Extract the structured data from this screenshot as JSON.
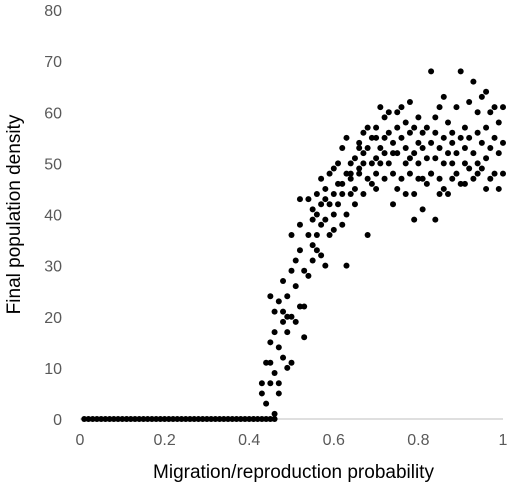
{
  "chart_data": {
    "type": "scatter",
    "title": "",
    "xlabel": "Migration/reproduction probability",
    "ylabel": "Final population density",
    "xlim": [
      0,
      1
    ],
    "ylim": [
      0,
      80
    ],
    "x_ticks": [
      "0",
      "0.2",
      "0.4",
      "0.6",
      "0.8",
      "1"
    ],
    "y_ticks": [
      "0",
      "10",
      "20",
      "30",
      "40",
      "50",
      "60",
      "70",
      "80"
    ],
    "grid": false,
    "legend": "none",
    "marker_color": "#000000",
    "axis_color": "#bfbfbf",
    "series": [
      {
        "points": [
          [
            0.01,
            0
          ],
          [
            0.02,
            0
          ],
          [
            0.03,
            0
          ],
          [
            0.04,
            0
          ],
          [
            0.05,
            0
          ],
          [
            0.06,
            0
          ],
          [
            0.07,
            0
          ],
          [
            0.08,
            0
          ],
          [
            0.09,
            0
          ],
          [
            0.1,
            0
          ],
          [
            0.11,
            0
          ],
          [
            0.12,
            0
          ],
          [
            0.13,
            0
          ],
          [
            0.14,
            0
          ],
          [
            0.15,
            0
          ],
          [
            0.16,
            0
          ],
          [
            0.17,
            0
          ],
          [
            0.18,
            0
          ],
          [
            0.19,
            0
          ],
          [
            0.2,
            0
          ],
          [
            0.21,
            0
          ],
          [
            0.22,
            0
          ],
          [
            0.23,
            0
          ],
          [
            0.24,
            0
          ],
          [
            0.25,
            0
          ],
          [
            0.26,
            0
          ],
          [
            0.27,
            0
          ],
          [
            0.28,
            0
          ],
          [
            0.29,
            0
          ],
          [
            0.3,
            0
          ],
          [
            0.31,
            0
          ],
          [
            0.32,
            0
          ],
          [
            0.33,
            0
          ],
          [
            0.34,
            0
          ],
          [
            0.35,
            0
          ],
          [
            0.36,
            0
          ],
          [
            0.37,
            0
          ],
          [
            0.38,
            0
          ],
          [
            0.39,
            0
          ],
          [
            0.4,
            0
          ],
          [
            0.41,
            0
          ],
          [
            0.42,
            0
          ],
          [
            0.43,
            0
          ],
          [
            0.44,
            0
          ],
          [
            0.45,
            0
          ],
          [
            0.46,
            0
          ],
          [
            0.43,
            7
          ],
          [
            0.43,
            5
          ],
          [
            0.44,
            11
          ],
          [
            0.44,
            3
          ],
          [
            0.45,
            7
          ],
          [
            0.45,
            11
          ],
          [
            0.45,
            15
          ],
          [
            0.45,
            24
          ],
          [
            0.46,
            1
          ],
          [
            0.46,
            17
          ],
          [
            0.46,
            21
          ],
          [
            0.46,
            9
          ],
          [
            0.47,
            14
          ],
          [
            0.47,
            23
          ],
          [
            0.47,
            5
          ],
          [
            0.47,
            7
          ],
          [
            0.48,
            19
          ],
          [
            0.48,
            12
          ],
          [
            0.48,
            27
          ],
          [
            0.48,
            21
          ],
          [
            0.49,
            17
          ],
          [
            0.49,
            24
          ],
          [
            0.49,
            10
          ],
          [
            0.49,
            20
          ],
          [
            0.5,
            11
          ],
          [
            0.5,
            29
          ],
          [
            0.5,
            36
          ],
          [
            0.5,
            20
          ],
          [
            0.51,
            31
          ],
          [
            0.51,
            19
          ],
          [
            0.51,
            26
          ],
          [
            0.52,
            22
          ],
          [
            0.52,
            33
          ],
          [
            0.52,
            38
          ],
          [
            0.52,
            43
          ],
          [
            0.53,
            22
          ],
          [
            0.53,
            29
          ],
          [
            0.53,
            16
          ],
          [
            0.54,
            36
          ],
          [
            0.54,
            43
          ],
          [
            0.54,
            28
          ],
          [
            0.55,
            34
          ],
          [
            0.55,
            39
          ],
          [
            0.55,
            41
          ],
          [
            0.55,
            31
          ],
          [
            0.56,
            36
          ],
          [
            0.56,
            40
          ],
          [
            0.56,
            44
          ],
          [
            0.56,
            33
          ],
          [
            0.57,
            32
          ],
          [
            0.57,
            38
          ],
          [
            0.57,
            47
          ],
          [
            0.57,
            42
          ],
          [
            0.58,
            30
          ],
          [
            0.58,
            43
          ],
          [
            0.58,
            39
          ],
          [
            0.58,
            45
          ],
          [
            0.59,
            42
          ],
          [
            0.59,
            36
          ],
          [
            0.59,
            48
          ],
          [
            0.6,
            44
          ],
          [
            0.6,
            40
          ],
          [
            0.6,
            37
          ],
          [
            0.6,
            49
          ],
          [
            0.61,
            46
          ],
          [
            0.61,
            42
          ],
          [
            0.61,
            50
          ],
          [
            0.62,
            46
          ],
          [
            0.62,
            53
          ],
          [
            0.62,
            38
          ],
          [
            0.63,
            40
          ],
          [
            0.63,
            48
          ],
          [
            0.63,
            55
          ],
          [
            0.63,
            30
          ],
          [
            0.64,
            44
          ],
          [
            0.64,
            50
          ],
          [
            0.64,
            47
          ],
          [
            0.65,
            51
          ],
          [
            0.65,
            45
          ],
          [
            0.65,
            42
          ],
          [
            0.66,
            54
          ],
          [
            0.66,
            48
          ],
          [
            0.66,
            49
          ],
          [
            0.67,
            56
          ],
          [
            0.67,
            52
          ],
          [
            0.67,
            44
          ],
          [
            0.68,
            47
          ],
          [
            0.68,
            57
          ],
          [
            0.68,
            53
          ],
          [
            0.68,
            36
          ],
          [
            0.69,
            50
          ],
          [
            0.69,
            46
          ],
          [
            0.69,
            55
          ],
          [
            0.7,
            51
          ],
          [
            0.7,
            48
          ],
          [
            0.7,
            57
          ],
          [
            0.7,
            45
          ],
          [
            0.71,
            53
          ],
          [
            0.71,
            61
          ],
          [
            0.71,
            50
          ],
          [
            0.72,
            59
          ],
          [
            0.72,
            55
          ],
          [
            0.72,
            47
          ],
          [
            0.73,
            50
          ],
          [
            0.73,
            56
          ],
          [
            0.73,
            60
          ],
          [
            0.74,
            54
          ],
          [
            0.74,
            48
          ],
          [
            0.74,
            42
          ],
          [
            0.75,
            57
          ],
          [
            0.75,
            52
          ],
          [
            0.75,
            60
          ],
          [
            0.76,
            47
          ],
          [
            0.76,
            55
          ],
          [
            0.76,
            61
          ],
          [
            0.77,
            50
          ],
          [
            0.77,
            53
          ],
          [
            0.77,
            58
          ],
          [
            0.78,
            48
          ],
          [
            0.78,
            56
          ],
          [
            0.78,
            62
          ],
          [
            0.79,
            44
          ],
          [
            0.79,
            52
          ],
          [
            0.79,
            57
          ],
          [
            0.8,
            50
          ],
          [
            0.8,
            54
          ],
          [
            0.8,
            59
          ],
          [
            0.81,
            47
          ],
          [
            0.81,
            53
          ],
          [
            0.81,
            56
          ],
          [
            0.82,
            46
          ],
          [
            0.82,
            51
          ],
          [
            0.82,
            57
          ],
          [
            0.83,
            48
          ],
          [
            0.83,
            54
          ],
          [
            0.83,
            68
          ],
          [
            0.84,
            51
          ],
          [
            0.84,
            56
          ],
          [
            0.84,
            59
          ],
          [
            0.85,
            47
          ],
          [
            0.85,
            53
          ],
          [
            0.85,
            61
          ],
          [
            0.86,
            50
          ],
          [
            0.86,
            55
          ],
          [
            0.86,
            63
          ],
          [
            0.87,
            44
          ],
          [
            0.87,
            52
          ],
          [
            0.87,
            58
          ],
          [
            0.88,
            50
          ],
          [
            0.88,
            56
          ],
          [
            0.88,
            54
          ],
          [
            0.89,
            48
          ],
          [
            0.89,
            52
          ],
          [
            0.89,
            61
          ],
          [
            0.9,
            46
          ],
          [
            0.9,
            55
          ],
          [
            0.9,
            68
          ],
          [
            0.91,
            50
          ],
          [
            0.91,
            57
          ],
          [
            0.91,
            53
          ],
          [
            0.92,
            49
          ],
          [
            0.92,
            55
          ],
          [
            0.92,
            62
          ],
          [
            0.93,
            47
          ],
          [
            0.93,
            52
          ],
          [
            0.93,
            66
          ],
          [
            0.94,
            50
          ],
          [
            0.94,
            56
          ],
          [
            0.94,
            60
          ],
          [
            0.95,
            49
          ],
          [
            0.95,
            54
          ],
          [
            0.95,
            63
          ],
          [
            0.96,
            51
          ],
          [
            0.96,
            57
          ],
          [
            0.96,
            64
          ],
          [
            0.97,
            47
          ],
          [
            0.97,
            53
          ],
          [
            0.97,
            60
          ],
          [
            0.98,
            48
          ],
          [
            0.98,
            55
          ],
          [
            0.98,
            61
          ],
          [
            0.99,
            45
          ],
          [
            0.99,
            52
          ],
          [
            0.99,
            58
          ],
          [
            1.0,
            48
          ],
          [
            1.0,
            54
          ],
          [
            1.0,
            61
          ],
          [
            0.79,
            39
          ],
          [
            0.84,
            39
          ],
          [
            0.86,
            45
          ],
          [
            0.75,
            45
          ],
          [
            0.77,
            44
          ],
          [
            0.74,
            52
          ],
          [
            0.72,
            52
          ],
          [
            0.81,
            41
          ],
          [
            0.67,
            50
          ],
          [
            0.7,
            55
          ],
          [
            0.66,
            53
          ],
          [
            0.64,
            48
          ],
          [
            0.62,
            44
          ],
          [
            0.96,
            45
          ],
          [
            0.94,
            48
          ],
          [
            0.91,
            46
          ],
          [
            0.88,
            47
          ],
          [
            0.85,
            44
          ],
          [
            0.83,
            48
          ],
          [
            0.8,
            47
          ],
          [
            0.78,
            51
          ]
        ]
      }
    ]
  }
}
